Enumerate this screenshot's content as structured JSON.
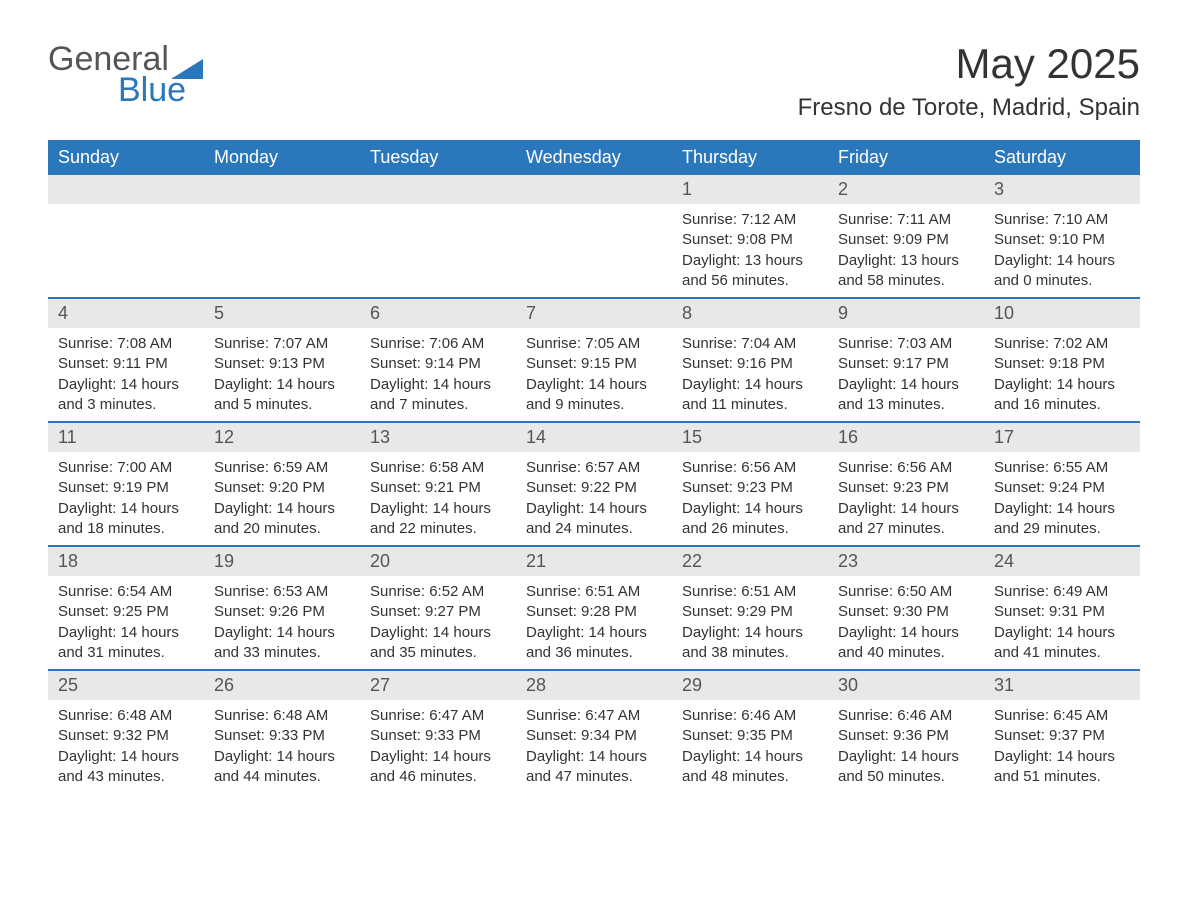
{
  "logo": {
    "text1": "General",
    "text2": "Blue"
  },
  "title": "May 2025",
  "location": "Fresno de Torote, Madrid, Spain",
  "colors": {
    "header_bg": "#2a77bb",
    "header_text": "#ffffff",
    "daynum_bg": "#e8e8e8",
    "border": "#2a77bb",
    "text": "#333333"
  },
  "weekdays": [
    "Sunday",
    "Monday",
    "Tuesday",
    "Wednesday",
    "Thursday",
    "Friday",
    "Saturday"
  ],
  "weeks": [
    [
      {
        "empty": true
      },
      {
        "empty": true
      },
      {
        "empty": true
      },
      {
        "empty": true
      },
      {
        "n": "1",
        "sunrise": "Sunrise: 7:12 AM",
        "sunset": "Sunset: 9:08 PM",
        "daylight": "Daylight: 13 hours and 56 minutes."
      },
      {
        "n": "2",
        "sunrise": "Sunrise: 7:11 AM",
        "sunset": "Sunset: 9:09 PM",
        "daylight": "Daylight: 13 hours and 58 minutes."
      },
      {
        "n": "3",
        "sunrise": "Sunrise: 7:10 AM",
        "sunset": "Sunset: 9:10 PM",
        "daylight": "Daylight: 14 hours and 0 minutes."
      }
    ],
    [
      {
        "n": "4",
        "sunrise": "Sunrise: 7:08 AM",
        "sunset": "Sunset: 9:11 PM",
        "daylight": "Daylight: 14 hours and 3 minutes."
      },
      {
        "n": "5",
        "sunrise": "Sunrise: 7:07 AM",
        "sunset": "Sunset: 9:13 PM",
        "daylight": "Daylight: 14 hours and 5 minutes."
      },
      {
        "n": "6",
        "sunrise": "Sunrise: 7:06 AM",
        "sunset": "Sunset: 9:14 PM",
        "daylight": "Daylight: 14 hours and 7 minutes."
      },
      {
        "n": "7",
        "sunrise": "Sunrise: 7:05 AM",
        "sunset": "Sunset: 9:15 PM",
        "daylight": "Daylight: 14 hours and 9 minutes."
      },
      {
        "n": "8",
        "sunrise": "Sunrise: 7:04 AM",
        "sunset": "Sunset: 9:16 PM",
        "daylight": "Daylight: 14 hours and 11 minutes."
      },
      {
        "n": "9",
        "sunrise": "Sunrise: 7:03 AM",
        "sunset": "Sunset: 9:17 PM",
        "daylight": "Daylight: 14 hours and 13 minutes."
      },
      {
        "n": "10",
        "sunrise": "Sunrise: 7:02 AM",
        "sunset": "Sunset: 9:18 PM",
        "daylight": "Daylight: 14 hours and 16 minutes."
      }
    ],
    [
      {
        "n": "11",
        "sunrise": "Sunrise: 7:00 AM",
        "sunset": "Sunset: 9:19 PM",
        "daylight": "Daylight: 14 hours and 18 minutes."
      },
      {
        "n": "12",
        "sunrise": "Sunrise: 6:59 AM",
        "sunset": "Sunset: 9:20 PM",
        "daylight": "Daylight: 14 hours and 20 minutes."
      },
      {
        "n": "13",
        "sunrise": "Sunrise: 6:58 AM",
        "sunset": "Sunset: 9:21 PM",
        "daylight": "Daylight: 14 hours and 22 minutes."
      },
      {
        "n": "14",
        "sunrise": "Sunrise: 6:57 AM",
        "sunset": "Sunset: 9:22 PM",
        "daylight": "Daylight: 14 hours and 24 minutes."
      },
      {
        "n": "15",
        "sunrise": "Sunrise: 6:56 AM",
        "sunset": "Sunset: 9:23 PM",
        "daylight": "Daylight: 14 hours and 26 minutes."
      },
      {
        "n": "16",
        "sunrise": "Sunrise: 6:56 AM",
        "sunset": "Sunset: 9:23 PM",
        "daylight": "Daylight: 14 hours and 27 minutes."
      },
      {
        "n": "17",
        "sunrise": "Sunrise: 6:55 AM",
        "sunset": "Sunset: 9:24 PM",
        "daylight": "Daylight: 14 hours and 29 minutes."
      }
    ],
    [
      {
        "n": "18",
        "sunrise": "Sunrise: 6:54 AM",
        "sunset": "Sunset: 9:25 PM",
        "daylight": "Daylight: 14 hours and 31 minutes."
      },
      {
        "n": "19",
        "sunrise": "Sunrise: 6:53 AM",
        "sunset": "Sunset: 9:26 PM",
        "daylight": "Daylight: 14 hours and 33 minutes."
      },
      {
        "n": "20",
        "sunrise": "Sunrise: 6:52 AM",
        "sunset": "Sunset: 9:27 PM",
        "daylight": "Daylight: 14 hours and 35 minutes."
      },
      {
        "n": "21",
        "sunrise": "Sunrise: 6:51 AM",
        "sunset": "Sunset: 9:28 PM",
        "daylight": "Daylight: 14 hours and 36 minutes."
      },
      {
        "n": "22",
        "sunrise": "Sunrise: 6:51 AM",
        "sunset": "Sunset: 9:29 PM",
        "daylight": "Daylight: 14 hours and 38 minutes."
      },
      {
        "n": "23",
        "sunrise": "Sunrise: 6:50 AM",
        "sunset": "Sunset: 9:30 PM",
        "daylight": "Daylight: 14 hours and 40 minutes."
      },
      {
        "n": "24",
        "sunrise": "Sunrise: 6:49 AM",
        "sunset": "Sunset: 9:31 PM",
        "daylight": "Daylight: 14 hours and 41 minutes."
      }
    ],
    [
      {
        "n": "25",
        "sunrise": "Sunrise: 6:48 AM",
        "sunset": "Sunset: 9:32 PM",
        "daylight": "Daylight: 14 hours and 43 minutes."
      },
      {
        "n": "26",
        "sunrise": "Sunrise: 6:48 AM",
        "sunset": "Sunset: 9:33 PM",
        "daylight": "Daylight: 14 hours and 44 minutes."
      },
      {
        "n": "27",
        "sunrise": "Sunrise: 6:47 AM",
        "sunset": "Sunset: 9:33 PM",
        "daylight": "Daylight: 14 hours and 46 minutes."
      },
      {
        "n": "28",
        "sunrise": "Sunrise: 6:47 AM",
        "sunset": "Sunset: 9:34 PM",
        "daylight": "Daylight: 14 hours and 47 minutes."
      },
      {
        "n": "29",
        "sunrise": "Sunrise: 6:46 AM",
        "sunset": "Sunset: 9:35 PM",
        "daylight": "Daylight: 14 hours and 48 minutes."
      },
      {
        "n": "30",
        "sunrise": "Sunrise: 6:46 AM",
        "sunset": "Sunset: 9:36 PM",
        "daylight": "Daylight: 14 hours and 50 minutes."
      },
      {
        "n": "31",
        "sunrise": "Sunrise: 6:45 AM",
        "sunset": "Sunset: 9:37 PM",
        "daylight": "Daylight: 14 hours and 51 minutes."
      }
    ]
  ]
}
